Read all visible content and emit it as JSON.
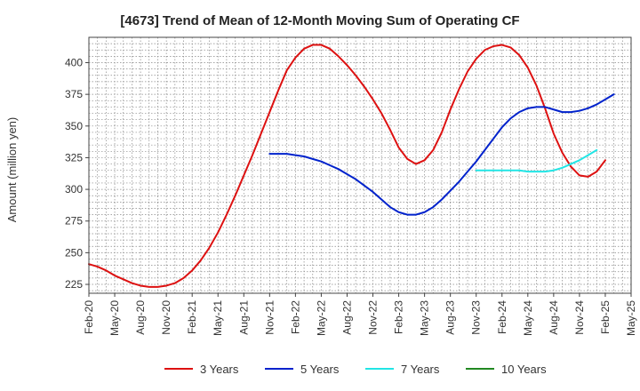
{
  "chart_data": {
    "type": "line",
    "title": "[4673]  Trend of Mean of 12-Month Moving Sum of Operating CF",
    "ylabel": "Amount (million yen)",
    "xlabel": "",
    "ylim": [
      218,
      420
    ],
    "yticks": [
      225,
      250,
      275,
      300,
      325,
      350,
      375,
      400
    ],
    "grid": true,
    "x_start": "2020-02",
    "x_end": "2025-05",
    "xtick_labels": [
      "Feb-20",
      "May-20",
      "Aug-20",
      "Nov-20",
      "Feb-21",
      "May-21",
      "Aug-21",
      "Nov-21",
      "Feb-22",
      "May-22",
      "Aug-22",
      "Nov-22",
      "Feb-23",
      "May-23",
      "Aug-23",
      "Nov-23",
      "Feb-24",
      "May-24",
      "Aug-24",
      "Nov-24",
      "Feb-25",
      "May-25"
    ],
    "legend_position": "bottom",
    "series": [
      {
        "name": "3 Years",
        "color": "#dd1111",
        "start": "2020-02",
        "values": [
          241,
          239,
          236,
          232,
          229,
          226,
          224,
          223,
          223,
          224,
          226,
          230,
          236,
          244,
          254,
          266,
          280,
          295,
          311,
          327,
          344,
          361,
          378,
          394,
          404,
          411,
          414,
          414,
          411,
          405,
          398,
          390,
          381,
          371,
          360,
          347,
          333,
          324,
          320,
          323,
          331,
          345,
          363,
          379,
          393,
          403,
          410,
          413,
          414,
          412,
          406,
          396,
          382,
          364,
          344,
          329,
          318,
          311,
          310,
          314,
          323
        ]
      },
      {
        "name": "5 Years",
        "color": "#0022cc",
        "start": "2021-11",
        "values": [
          328,
          328,
          328,
          327,
          326,
          324,
          322,
          319,
          316,
          312,
          308,
          303,
          298,
          292,
          286,
          282,
          280,
          280,
          282,
          286,
          292,
          299,
          306,
          314,
          322,
          331,
          340,
          349,
          356,
          361,
          364,
          365,
          365,
          363,
          361,
          361,
          362,
          364,
          367,
          371,
          375
        ]
      },
      {
        "name": "7 Years",
        "color": "#22e5e5",
        "start": "2023-11",
        "values": [
          315,
          315,
          315,
          315,
          315,
          315,
          314,
          314,
          314,
          315,
          317,
          320,
          323,
          327,
          331
        ]
      },
      {
        "name": "10 Years",
        "color": "#228822",
        "start": "2023-11",
        "values": []
      }
    ]
  }
}
